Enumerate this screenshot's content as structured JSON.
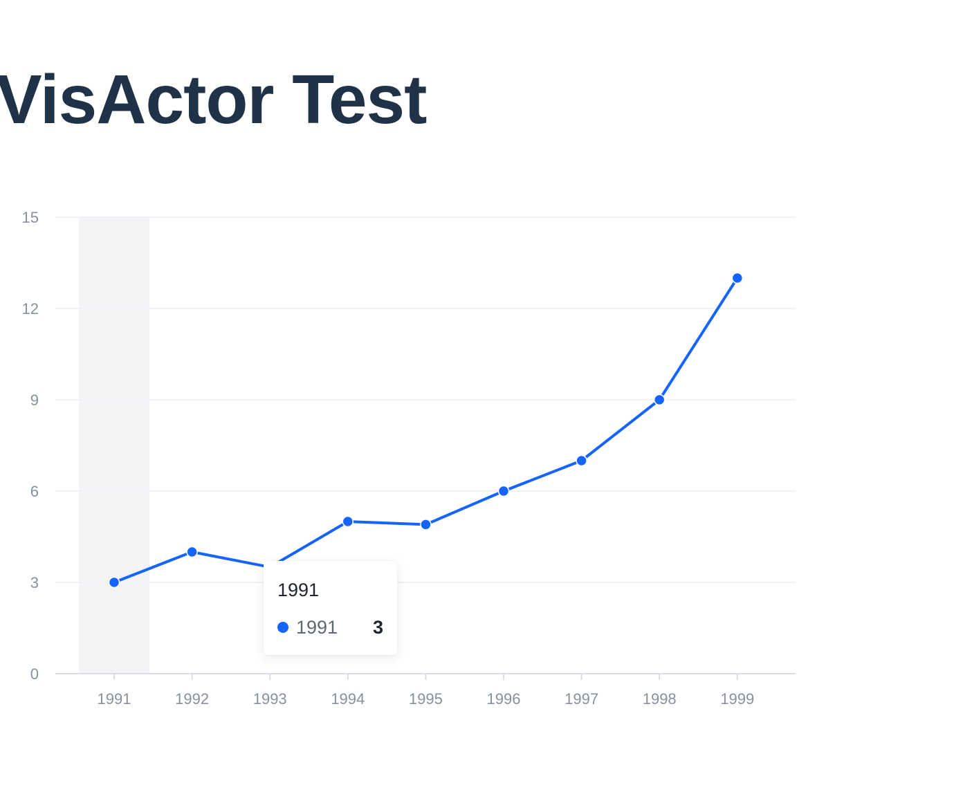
{
  "page": {
    "title": "VisActor Test"
  },
  "chart_data": {
    "type": "line",
    "categories": [
      "1991",
      "1992",
      "1993",
      "1994",
      "1995",
      "1996",
      "1997",
      "1998",
      "1999"
    ],
    "values": [
      3,
      4,
      3.5,
      5,
      4.9,
      6,
      7,
      9,
      13
    ],
    "ylim": [
      0,
      15
    ],
    "yticks": [
      0,
      3,
      6,
      9,
      12,
      15
    ],
    "title": "",
    "xlabel": "",
    "ylabel": "",
    "grid": "horizontal",
    "crosshair_category": "1991",
    "colors": {
      "series": "#1664ff",
      "grid": "#f1f2f5",
      "axis": "#d9dde4",
      "tick_label": "#89909d",
      "crosshair": "#f4f4f6"
    }
  },
  "tooltip": {
    "title": "1991",
    "key": "1991",
    "value": "3"
  }
}
